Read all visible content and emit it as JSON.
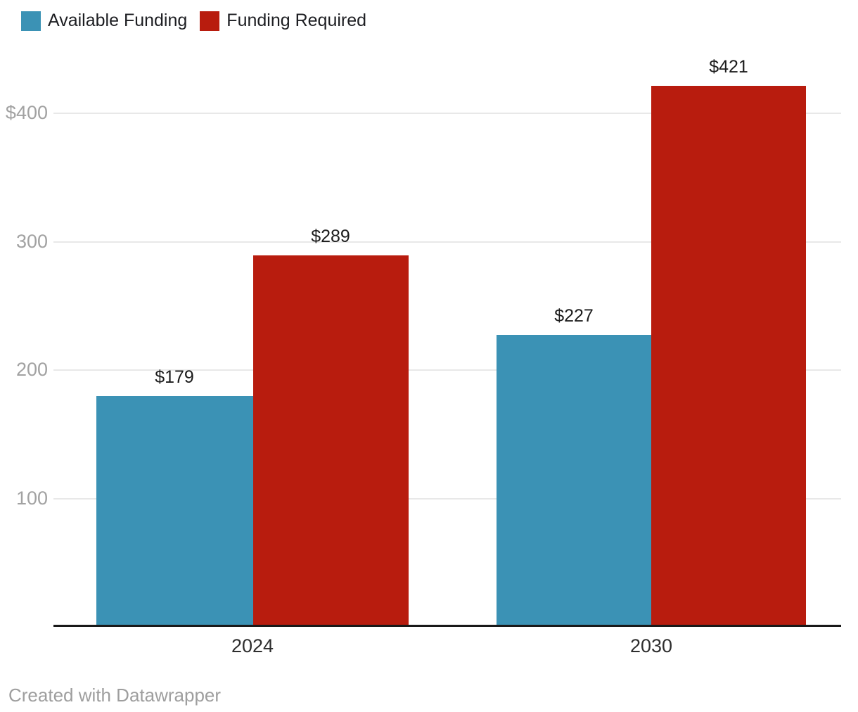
{
  "legend": {
    "items": [
      {
        "label": "Available Funding",
        "color": "#3b92b5"
      },
      {
        "label": "Funding Required",
        "color": "#b81c0e"
      }
    ]
  },
  "chart_data": {
    "type": "bar",
    "title": "",
    "categories": [
      "2024",
      "2030"
    ],
    "series": [
      {
        "name": "Available Funding",
        "color": "#3b92b5",
        "values": [
          179,
          227
        ],
        "value_labels": [
          "$179",
          "$227"
        ]
      },
      {
        "name": "Funding Required",
        "color": "#b81c0e",
        "values": [
          289,
          421
        ],
        "value_labels": [
          "$289",
          "$421"
        ]
      }
    ],
    "yticks": [
      {
        "value": 400,
        "label": "$400"
      },
      {
        "value": 300,
        "label": "300"
      },
      {
        "value": 200,
        "label": "200"
      },
      {
        "value": 100,
        "label": "100"
      }
    ],
    "ylim": [
      0,
      488
    ],
    "grid": "horizontal",
    "legend_position": "top-left",
    "value_prefix": "$"
  },
  "footer": {
    "credit": "Created with Datawrapper"
  },
  "colors": {
    "background": "#ffffff",
    "axis_line": "#191919",
    "gridline": "#e8e8e8",
    "ytick_text": "#a2a2a2",
    "value_label_text": "#1b1b1b",
    "category_text": "#2e2e2e",
    "footer_text": "#9e9e9e"
  }
}
